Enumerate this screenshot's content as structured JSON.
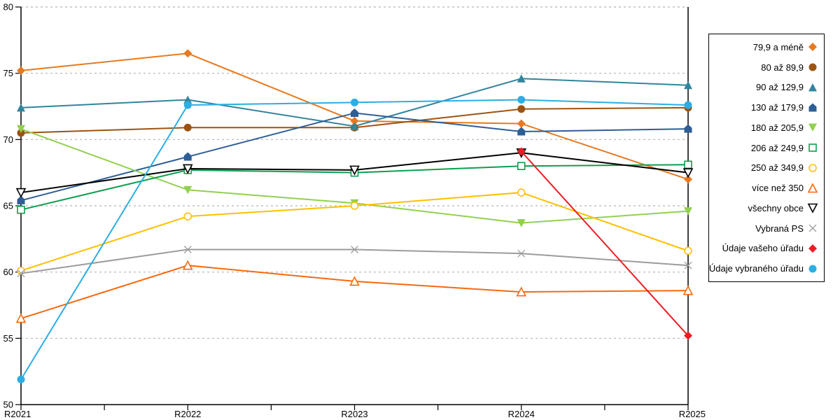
{
  "chart_data": {
    "type": "line",
    "title": "",
    "xlabel": "",
    "ylabel": "",
    "ylim": [
      50,
      80
    ],
    "yticks": [
      50,
      55,
      60,
      65,
      70,
      75,
      80
    ],
    "grid": "horizontal-dashed",
    "legend_position": "right",
    "categories": [
      "R2021",
      "R2022",
      "R2023",
      "R2024",
      "R2025"
    ],
    "series": [
      {
        "name": "79,9 a méně",
        "marker": "diamond",
        "fill": "filled",
        "color": "#E8791E",
        "values": [
          75.2,
          76.5,
          71.4,
          71.2,
          67.0
        ]
      },
      {
        "name": "80 až 89,9",
        "marker": "circle",
        "fill": "filled",
        "color": "#9C5312",
        "values": [
          70.5,
          70.9,
          70.9,
          72.3,
          72.4
        ]
      },
      {
        "name": "90 až 129,9",
        "marker": "triangle-up",
        "fill": "filled",
        "color": "#31859C",
        "values": [
          72.4,
          73.0,
          71.0,
          74.6,
          74.1
        ]
      },
      {
        "name": "130 až 179,9",
        "marker": "pentagon",
        "fill": "filled",
        "color": "#2E5E96",
        "values": [
          65.4,
          68.7,
          72.0,
          70.6,
          70.8
        ]
      },
      {
        "name": "180 až 205,9",
        "marker": "triangle-down",
        "fill": "filled",
        "color": "#92D050",
        "values": [
          70.8,
          66.2,
          65.2,
          63.7,
          64.6
        ]
      },
      {
        "name": "206 až 249,9",
        "marker": "square-open",
        "fill": "open",
        "color": "#0CA04F",
        "values": [
          64.7,
          67.7,
          67.5,
          68.0,
          68.1
        ]
      },
      {
        "name": "250 až 349,9",
        "marker": "circle-open",
        "fill": "open",
        "color": "#FFC000",
        "values": [
          60.1,
          64.2,
          65.0,
          66.0,
          61.6
        ]
      },
      {
        "name": "více než 350",
        "marker": "triangle-up-open",
        "fill": "open",
        "color": "#F8690D",
        "values": [
          56.5,
          60.5,
          59.3,
          58.5,
          58.6
        ]
      },
      {
        "name": "všechny obce",
        "marker": "triangle-down-open",
        "fill": "open",
        "color": "#000000",
        "values": [
          66.0,
          67.8,
          67.7,
          69.0,
          67.5
        ]
      },
      {
        "name": "Vybraná PS",
        "marker": "x",
        "fill": "open",
        "color": "#9C9C9C",
        "values": [
          59.9,
          61.7,
          61.7,
          61.4,
          60.5
        ]
      },
      {
        "name": "Údaje vašeho úřadu",
        "marker": "diamond",
        "fill": "filled",
        "color": "#EC1C24",
        "values": [
          null,
          null,
          null,
          69.1,
          55.2
        ]
      },
      {
        "name": "Údaje vybraného úřadu",
        "marker": "circle",
        "fill": "filled",
        "color": "#2CAEE4",
        "values": [
          51.9,
          72.6,
          72.8,
          73.0,
          72.6
        ]
      }
    ],
    "colors": {
      "axis": "#000000",
      "gridline": "#B3B3B3",
      "background": "#FFFFFF"
    }
  }
}
